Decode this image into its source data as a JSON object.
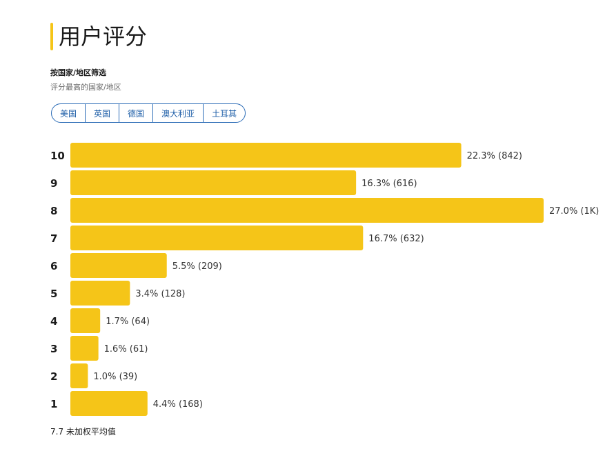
{
  "header": {
    "title": "用户评分",
    "accent_color": "#f5c518"
  },
  "filter": {
    "heading": "按国家/地区筛选",
    "subheading": "评分最高的国家/地区",
    "tabs": [
      {
        "label": "美国"
      },
      {
        "label": "英国"
      },
      {
        "label": "德国"
      },
      {
        "label": "澳大利亚"
      },
      {
        "label": "土耳其"
      }
    ],
    "border_color": "#2a6bb6"
  },
  "chart_data": {
    "type": "bar",
    "orientation": "horizontal",
    "categories": [
      "10",
      "9",
      "8",
      "7",
      "6",
      "5",
      "4",
      "3",
      "2",
      "1"
    ],
    "percent": [
      22.3,
      16.3,
      27.0,
      16.7,
      5.5,
      3.4,
      1.7,
      1.6,
      1.0,
      4.4
    ],
    "labels": [
      "22.3% (842)",
      "16.3% (616)",
      "27.0%  (1K)",
      "16.7% (632)",
      "5.5% (209)",
      "3.4% (128)",
      "1.7% (64)",
      "1.6% (61)",
      "1.0% (39)",
      "4.4% (168)"
    ],
    "bar_color": "#f5c518",
    "grid": false,
    "legend": "none"
  },
  "footer": {
    "average_text": "7.7 未加权平均值"
  }
}
